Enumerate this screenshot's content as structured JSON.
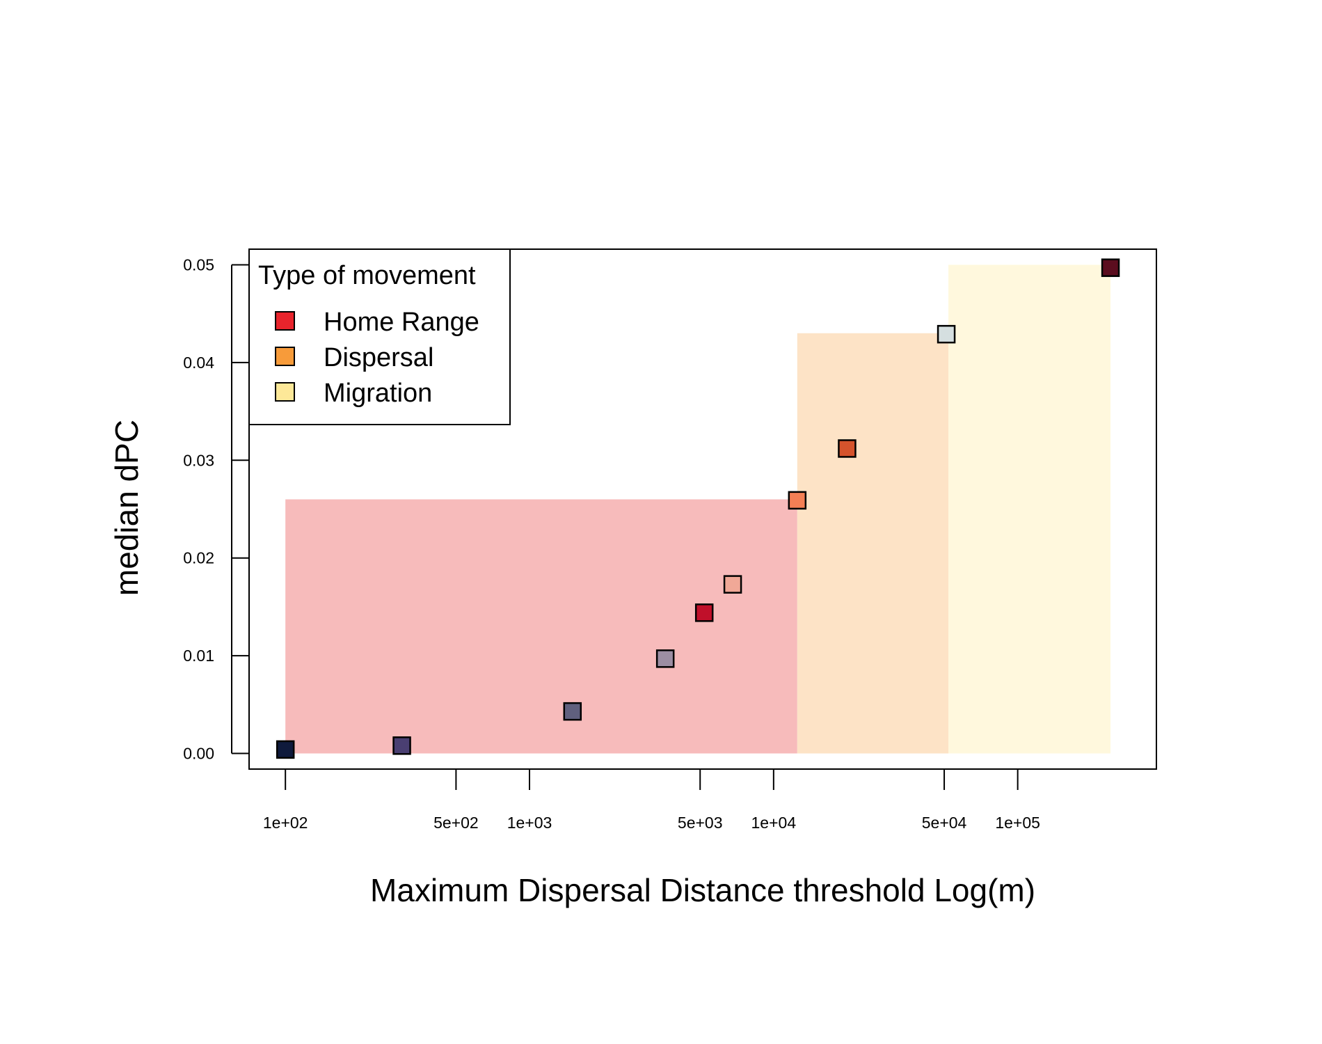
{
  "chart_data": {
    "type": "scatter",
    "xlabel": "Maximum Dispersal Distance threshold Log(m)",
    "ylabel": "median dPC",
    "x_scale": "log10",
    "xlim": [
      71,
      370000
    ],
    "ylim": [
      -0.0016,
      0.0516
    ],
    "x_ticks": [
      {
        "value": 100,
        "label": "1e+02"
      },
      {
        "value": 500,
        "label": "5e+02"
      },
      {
        "value": 1000,
        "label": "1e+03"
      },
      {
        "value": 5000,
        "label": "5e+03"
      },
      {
        "value": 10000,
        "label": "1e+04"
      },
      {
        "value": 50000,
        "label": "5e+04"
      },
      {
        "value": 100000,
        "label": "1e+05"
      }
    ],
    "y_ticks": [
      {
        "value": 0.0,
        "label": "0.00"
      },
      {
        "value": 0.01,
        "label": "0.01"
      },
      {
        "value": 0.02,
        "label": "0.02"
      },
      {
        "value": 0.03,
        "label": "0.03"
      },
      {
        "value": 0.04,
        "label": "0.04"
      },
      {
        "value": 0.05,
        "label": "0.05"
      }
    ],
    "bands": [
      {
        "name": "Home Range",
        "x0": 100,
        "x1": 12500,
        "y0": 0,
        "y1": 0.026,
        "color": "#f7bbbb"
      },
      {
        "name": "Dispersal",
        "x0": 12500,
        "x1": 52000,
        "y0": 0,
        "y1": 0.043,
        "color": "#fde3c6"
      },
      {
        "name": "Migration",
        "x0": 52000,
        "x1": 240000,
        "y0": 0,
        "y1": 0.05,
        "color": "#fff8dd"
      }
    ],
    "points": [
      {
        "x": 100,
        "y": 0.0004,
        "color": "#0f1a3c"
      },
      {
        "x": 300,
        "y": 0.0008,
        "color": "#4a3f72"
      },
      {
        "x": 1500,
        "y": 0.0043,
        "color": "#60607e"
      },
      {
        "x": 3600,
        "y": 0.0097,
        "color": "#9c8ea3"
      },
      {
        "x": 5200,
        "y": 0.0144,
        "color": "#c0102a"
      },
      {
        "x": 6800,
        "y": 0.0173,
        "color": "#f0a897"
      },
      {
        "x": 12500,
        "y": 0.0259,
        "color": "#f47f55"
      },
      {
        "x": 20000,
        "y": 0.0312,
        "color": "#d5532c"
      },
      {
        "x": 51000,
        "y": 0.0429,
        "color": "#d5dfe0"
      },
      {
        "x": 240000,
        "y": 0.0497,
        "color": "#5b0d1f"
      }
    ],
    "legend": {
      "title": "Type of movement",
      "position": "top-left",
      "items": [
        {
          "label": "Home Range",
          "color": "#e8242c"
        },
        {
          "label": "Dispersal",
          "color": "#f79b3a"
        },
        {
          "label": "Migration",
          "color": "#fde898"
        }
      ]
    },
    "grid": false
  }
}
